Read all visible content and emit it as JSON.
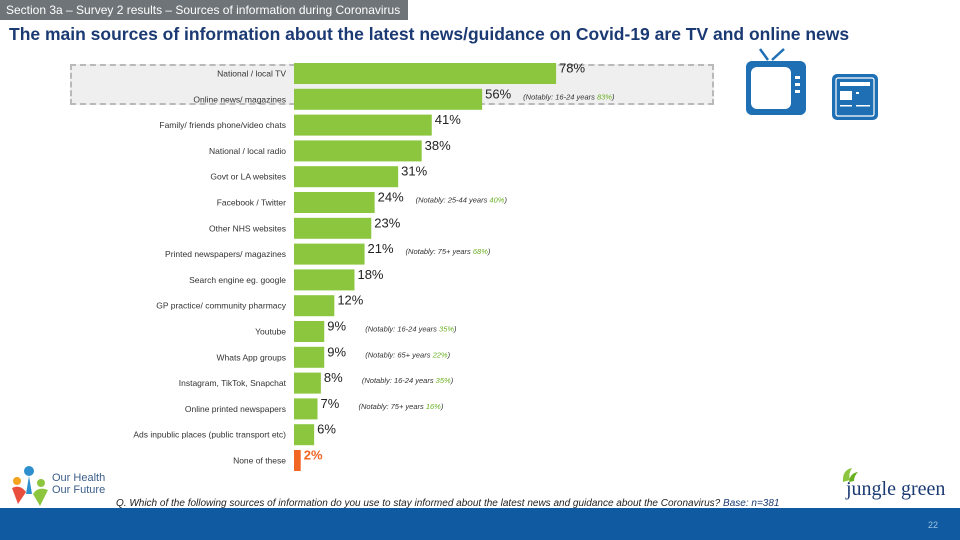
{
  "header": {
    "section_label": "Section 3a – Survey 2 results – Sources of information during Coronavirus",
    "title": "The main sources of information about the latest news/guidance on Covid-19 are TV and online news"
  },
  "chart_data": {
    "type": "bar",
    "orientation": "horizontal",
    "title": "The main sources of information about the latest news/guidance on Covid-19 are TV and online news",
    "xlim": [
      0,
      100
    ],
    "bar_color": "#8cc63f",
    "last_bar_color": "#f26522",
    "categories": [
      "National / local TV",
      "Online news/ magazines",
      "Family/ friends phone/video chats",
      "National / local radio",
      "Govt or LA websites",
      "Facebook / Twitter",
      "Other NHS websites",
      "Printed newspapers/ magazines",
      "Search engine eg. google",
      "GP practice/  community pharmacy",
      "Youtube",
      "Whats App groups",
      "Instagram, TikTok, Snapchat",
      "Online printed newspapers",
      "Ads inpublic places (public transport etc)",
      "None of these"
    ],
    "values": [
      78,
      56,
      41,
      38,
      31,
      24,
      23,
      21,
      18,
      12,
      9,
      9,
      8,
      7,
      6,
      2
    ],
    "value_labels": [
      "78%",
      "56%",
      "41%",
      "38%",
      "31%",
      "24%",
      "23%",
      "21%",
      "18%",
      "12%",
      "9%",
      "9%",
      "8%",
      "7%",
      "6%",
      "2%"
    ],
    "notes": [
      {
        "index": 1,
        "prefix": "(Notably: 16-24 years ",
        "value": "83%",
        "suffix": ")"
      },
      {
        "index": 5,
        "prefix": "(Notably: 25-44 years ",
        "value": "40%",
        "suffix": ")"
      },
      {
        "index": 7,
        "prefix": "(Notably: 75+ years ",
        "value": "68%",
        "suffix": ")"
      },
      {
        "index": 10,
        "prefix": "(Notably: 16-24 years ",
        "value": "35%",
        "suffix": ")"
      },
      {
        "index": 11,
        "prefix": "(Notably: 65+ years ",
        "value": "22%",
        "suffix": ")"
      },
      {
        "index": 12,
        "prefix": "(Notably: 16-24 years ",
        "value": "35%",
        "suffix": ")"
      },
      {
        "index": 13,
        "prefix": "(Notably: 75+ years ",
        "value": "16%",
        "suffix": ")"
      }
    ],
    "note_value_color": "#6ab023"
  },
  "footer": {
    "question": "Q. Which of the following sources of information do you use to stay informed about the latest news and guidance about the Coronavirus? ",
    "base": "Base: n=381",
    "page_number": "22",
    "logo_left_line1": "Our Health",
    "logo_left_line2": "Our Future",
    "logo_right": "jungle green"
  },
  "icons": {
    "tv": "tv-icon",
    "news": "newspaper-icon"
  },
  "colors": {
    "title": "#1b3a73",
    "footer_bar": "#0f5aa0",
    "icon_blue": "#1f6fb5"
  }
}
